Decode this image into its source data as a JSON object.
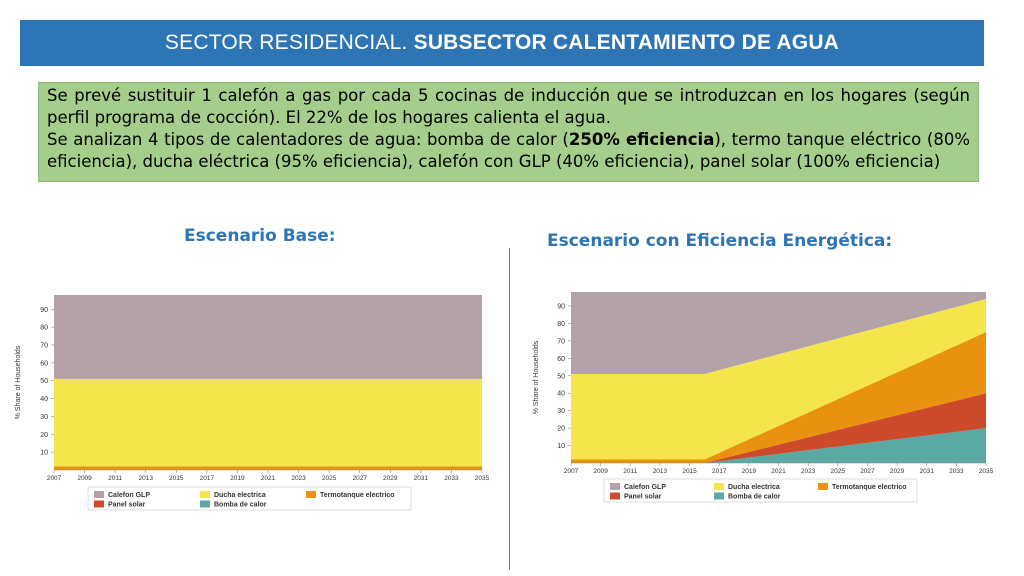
{
  "header": {
    "title_regular": "SECTOR RESIDENCIAL.",
    "title_bold": "SUBSECTOR CALENTAMIENTO DE AGUA"
  },
  "info": {
    "line1": "Se prevé sustituir 1 calefón a gas por cada 5 cocinas de inducción que se introduzcan en los hogares (según perfil programa de cocción). El 22% de los hogares calienta el agua.",
    "line2_pre": "Se analizan 4 tipos de calentadores de agua: bomba de calor (",
    "line2_bold": "250% eficiencia",
    "line2_post": "), termo tanque eléctrico (80% eficiencia), ducha eléctrica (95% eficiencia), calefón con GLP (40% eficiencia), panel solar (100% eficiencia)"
  },
  "scenarios": {
    "base_title": "Escenario Base:",
    "efficiency_title": "Escenario con Eficiencia Energética:"
  },
  "colors": {
    "calefon_glp": "#b3a3a8",
    "ducha_electrica": "#f5e54c",
    "termotanque_electrico": "#e8920f",
    "panel_solar": "#cc4b2b",
    "bomba_de_calor": "#5aa9a3"
  },
  "chart_data": [
    {
      "type": "area",
      "stacked": true,
      "ylabel": "% Share of Households",
      "ylim": [
        0,
        98
      ],
      "yticks": [
        10,
        20,
        30,
        40,
        50,
        60,
        70,
        80,
        90
      ],
      "xlim": [
        2007,
        2035
      ],
      "xticks": [
        "2007",
        "2009",
        "2011",
        "2013",
        "2015",
        "2017",
        "2019",
        "2021",
        "2023",
        "2025",
        "2027",
        "2029",
        "2031",
        "2033",
        "2035"
      ],
      "x": [
        2007,
        2035
      ],
      "series": [
        {
          "name": "Bomba de calor",
          "color_key": "bomba_de_calor",
          "values": [
            0,
            0
          ]
        },
        {
          "name": "Panel solar",
          "color_key": "panel_solar",
          "values": [
            0,
            0
          ]
        },
        {
          "name": "Termotanque electrico",
          "color_key": "termotanque_electrico",
          "values": [
            2,
            2
          ]
        },
        {
          "name": "Ducha electrica",
          "color_key": "ducha_electrica",
          "values": [
            49,
            49
          ]
        },
        {
          "name": "Calefon GLP",
          "color_key": "calefon_glp",
          "values": [
            47,
            47
          ]
        }
      ],
      "legend": [
        "Calefon GLP",
        "Ducha electrica",
        "Termotanque electrico",
        "Panel solar",
        "Bomba de calor"
      ],
      "legend_position": "bottom"
    },
    {
      "type": "area",
      "stacked": true,
      "ylabel": "% Share of Households",
      "ylim": [
        0,
        98
      ],
      "yticks": [
        10,
        20,
        30,
        40,
        50,
        60,
        70,
        80,
        90
      ],
      "xlim": [
        2007,
        2035
      ],
      "xticks": [
        "2007",
        "2009",
        "2011",
        "2013",
        "2015",
        "2017",
        "2019",
        "2021",
        "2023",
        "2025",
        "2027",
        "2029",
        "2031",
        "2033",
        "2035"
      ],
      "x": [
        2007,
        2016,
        2035
      ],
      "series": [
        {
          "name": "Bomba de calor",
          "color_key": "bomba_de_calor",
          "values": [
            0,
            0,
            20
          ]
        },
        {
          "name": "Panel solar",
          "color_key": "panel_solar",
          "values": [
            0,
            0,
            20
          ]
        },
        {
          "name": "Termotanque electrico",
          "color_key": "termotanque_electrico",
          "values": [
            2,
            2,
            35
          ]
        },
        {
          "name": "Ducha electrica",
          "color_key": "ducha_electrica",
          "values": [
            49,
            49,
            19
          ]
        },
        {
          "name": "Calefon GLP",
          "color_key": "calefon_glp",
          "values": [
            47,
            47,
            4
          ]
        }
      ],
      "legend": [
        "Calefon GLP",
        "Ducha electrica",
        "Termotanque electrico",
        "Panel solar",
        "Bomba de calor"
      ],
      "legend_position": "bottom"
    }
  ]
}
